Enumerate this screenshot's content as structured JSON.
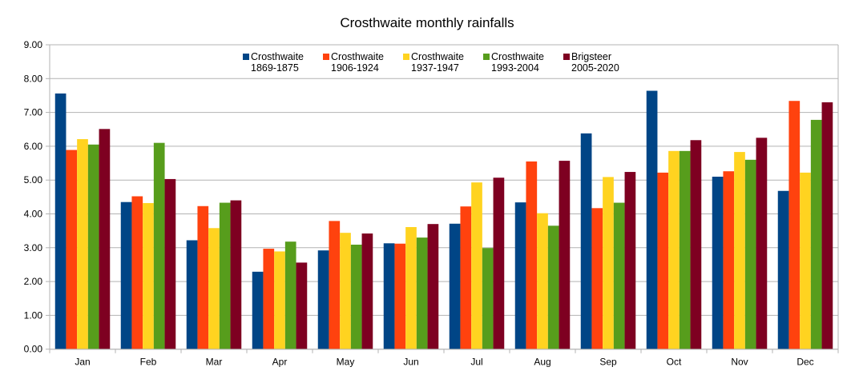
{
  "chart_data": {
    "type": "bar",
    "title": "Crosthwaite monthly rainfalls",
    "xlabel": "",
    "ylabel": "",
    "ylim": [
      0,
      9
    ],
    "yticks": [
      "0.00",
      "1.00",
      "2.00",
      "3.00",
      "4.00",
      "5.00",
      "6.00",
      "7.00",
      "8.00",
      "9.00"
    ],
    "grid": true,
    "legend_placement": "top-center",
    "categories": [
      "Jan",
      "Feb",
      "Mar",
      "Apr",
      "May",
      "Jun",
      "Jul",
      "Aug",
      "Sep",
      "Oct",
      "Nov",
      "Dec"
    ],
    "series": [
      {
        "name": "Crosthwaite 1869-1875",
        "label_lines": [
          "Crosthwaite",
          "1869-1875"
        ],
        "color": "#004586",
        "values": [
          7.56,
          4.35,
          3.22,
          2.29,
          2.92,
          3.13,
          3.71,
          4.34,
          6.38,
          7.64,
          5.1,
          4.68
        ]
      },
      {
        "name": "Crosthwaite 1906-1924",
        "label_lines": [
          "Crosthwaite",
          "1906-1924"
        ],
        "color": "#ff420e",
        "values": [
          5.89,
          4.52,
          4.23,
          2.97,
          3.79,
          3.12,
          4.22,
          5.55,
          4.17,
          5.22,
          5.26,
          7.34
        ]
      },
      {
        "name": "Crosthwaite 1937-1947",
        "label_lines": [
          "Crosthwaite",
          "1937-1947"
        ],
        "color": "#ffd320",
        "values": [
          6.21,
          4.32,
          3.58,
          2.89,
          3.44,
          3.61,
          4.93,
          4.02,
          5.09,
          5.86,
          5.83,
          5.22
        ]
      },
      {
        "name": "Crosthwaite 1993-2004",
        "label_lines": [
          "Crosthwaite",
          "1993-2004"
        ],
        "color": "#579d1c",
        "values": [
          6.05,
          6.1,
          4.33,
          3.18,
          3.09,
          3.3,
          2.99,
          3.65,
          4.33,
          5.86,
          5.6,
          6.78
        ]
      },
      {
        "name": "Brigsteer 2005-2020",
        "label_lines": [
          "Brigsteer",
          "2005-2020"
        ],
        "color": "#7e0021",
        "values": [
          6.51,
          5.03,
          4.4,
          2.56,
          3.42,
          3.7,
          5.07,
          5.57,
          5.24,
          6.18,
          6.25,
          7.3
        ]
      }
    ]
  }
}
